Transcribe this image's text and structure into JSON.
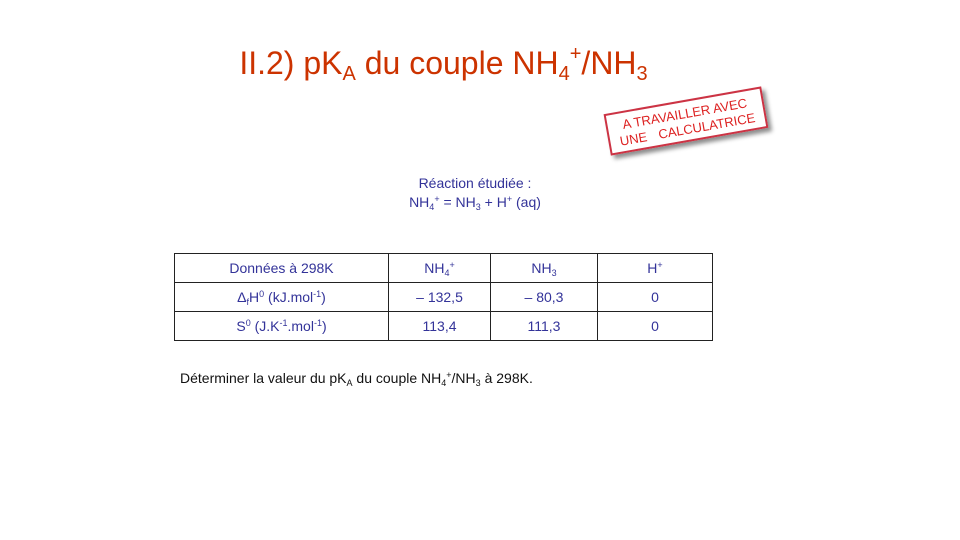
{
  "title": {
    "main": "II.2) pK",
    "sub_a": "A",
    "mid": " du couple NH",
    "sub_4": "4",
    "sup_plus": "+",
    "tail": "/NH",
    "sub_3": "3"
  },
  "stamp": {
    "line1": "A TRAVAILLER AVEC",
    "line2": "UNE CALCULATRICE"
  },
  "reaction": {
    "label": "Réaction étudiée :",
    "eq_nh": "NH",
    "eq_sub4": "4",
    "eq_sup_plus": "+",
    "eq_mid": " = NH",
    "eq_sub3": "3",
    "eq_plus_h": " + H",
    "eq_sup_plus2": "+",
    "eq_tail": " (aq)"
  },
  "table": {
    "header": {
      "label": "Données à 298K",
      "col1_base": "NH",
      "col1_sub": "4",
      "col1_sup": "+",
      "col2_base": "NH",
      "col2_sub": "3",
      "col3_base": "H",
      "col3_sup": "+"
    },
    "row1": {
      "label_delta": "Δ",
      "label_sub_f": "f",
      "label_h": "H",
      "label_sup0": "0",
      "label_unit_a": " (kJ.mol",
      "label_unit_sup": "-1",
      "label_unit_b": ")",
      "v1": "– 132,5",
      "v2": "– 80,3",
      "v3": "0"
    },
    "row2": {
      "label_s": "S",
      "label_sup0": "0",
      "label_unit_a": " (J.K",
      "label_unit_sup1": "-1",
      "label_unit_b": ".mol",
      "label_unit_sup2": "-1",
      "label_unit_c": ")",
      "v1": "113,4",
      "v2": "111,3",
      "v3": "0"
    }
  },
  "question": {
    "part1": "Déterminer la valeur du pK",
    "sub_a": "A",
    "part2": " du couple NH",
    "sub_4": "4",
    "sup_plus": "+",
    "part3": "/NH",
    "sub_3": "3",
    "part4": " à 298K."
  }
}
